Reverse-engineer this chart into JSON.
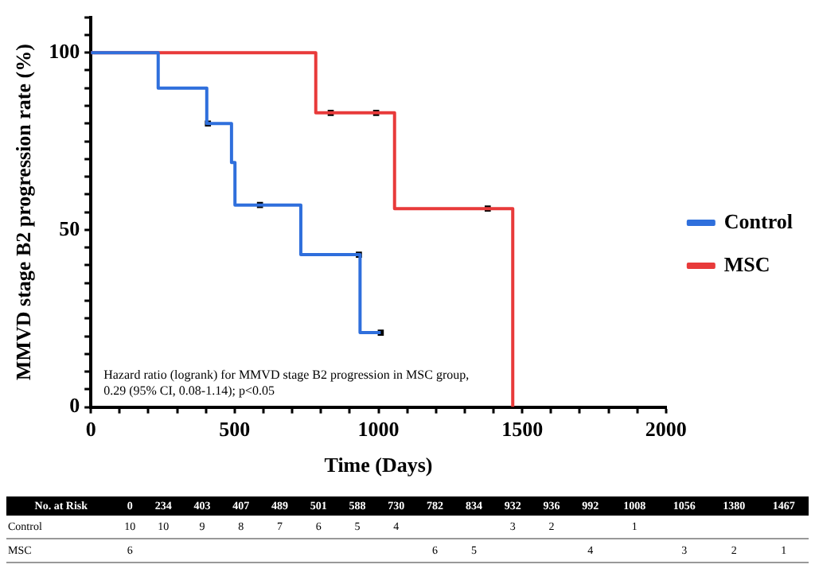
{
  "chart_data": [
    {
      "type": "step",
      "xlabel": "Time (Days)",
      "ylabel": "MMVD stage B2 progression rate (%)",
      "annotations": [
        "Hazard ratio (logrank) for MMVD stage B2 progression in MSC group, 0.29 (95% CI, 0.08-1.14); p<0.05"
      ],
      "series": [
        {
          "name": "Control",
          "color": "#2f6fdc",
          "x": [
            0,
            234,
            403,
            489,
            501,
            730,
            936,
            1008
          ],
          "values": [
            100,
            90,
            80,
            69,
            57,
            43,
            21,
            21
          ]
        },
        {
          "name": "MSC",
          "color": "#e83a3a",
          "x": [
            0,
            782,
            1056,
            1467
          ],
          "values": [
            100,
            83,
            56,
            0
          ]
        },
        {
          "type": "scatter",
          "color": "#000000",
          "marker": "square",
          "x": [
            407,
            588,
            932,
            1008
          ],
          "values": [
            80,
            57,
            43,
            21
          ]
        },
        {
          "type": "scatter",
          "color": "#000000",
          "marker": "square",
          "x": [
            834,
            992,
            1380
          ],
          "values": [
            83,
            83,
            56
          ]
        }
      ],
      "xlim": [
        0,
        2000
      ],
      "xticks": [
        0,
        {
          "value": 100,
          "label": null
        },
        {
          "value": 200,
          "label": null
        },
        {
          "value": 300,
          "label": null
        },
        {
          "value": 400,
          "label": null
        },
        500,
        {
          "value": 600,
          "label": null
        },
        {
          "value": 700,
          "label": null
        },
        {
          "value": 800,
          "label": null
        },
        {
          "value": 900,
          "label": null
        },
        1000,
        {
          "value": 1100,
          "label": null
        },
        {
          "value": 1200,
          "label": null
        },
        {
          "value": 1300,
          "label": null
        },
        {
          "value": 1400,
          "label": null
        },
        1500,
        {
          "value": 1600,
          "label": null
        },
        {
          "value": 1700,
          "label": null
        },
        {
          "value": 1800,
          "label": null
        },
        {
          "value": 1900,
          "label": null
        },
        2000
      ],
      "ylim": [
        0,
        110
      ],
      "yticks": [
        0,
        {
          "value": 5,
          "label": null
        },
        {
          "value": 10,
          "label": null
        },
        {
          "value": 15,
          "label": null
        },
        {
          "value": 20,
          "label": null
        },
        {
          "value": 25,
          "label": null
        },
        {
          "value": 30,
          "label": null
        },
        {
          "value": 35,
          "label": null
        },
        {
          "value": 40,
          "label": null
        },
        {
          "value": 45,
          "label": null
        },
        50,
        {
          "value": 55,
          "label": null
        },
        {
          "value": 60,
          "label": null
        },
        {
          "value": 65,
          "label": null
        },
        {
          "value": 70,
          "label": null
        },
        {
          "value": 75,
          "label": null
        },
        {
          "value": 80,
          "label": null
        },
        {
          "value": 85,
          "label": null
        },
        {
          "value": 90,
          "label": null
        },
        {
          "value": 95,
          "label": null
        },
        100,
        {
          "value": 105,
          "label": null
        },
        {
          "value": 110,
          "label": null
        }
      ],
      "grid": false,
      "legend": "right"
    },
    {
      "type": "other",
      "title": "No. at Risk",
      "categories": [
        "0",
        "234",
        "403",
        "407",
        "489",
        "501",
        "588",
        "730",
        "782",
        "834",
        "932",
        "936",
        "992",
        "1008",
        "1056",
        "1380",
        "1467"
      ],
      "series": [
        {
          "name": "Control",
          "values": [
            10,
            10,
            9,
            8,
            7,
            6,
            5,
            4,
            null,
            null,
            3,
            2,
            null,
            1,
            null,
            null,
            null
          ]
        },
        {
          "name": "MSC",
          "values": [
            6,
            null,
            null,
            null,
            null,
            null,
            null,
            null,
            6,
            5,
            null,
            null,
            4,
            null,
            3,
            2,
            1
          ]
        }
      ],
      "data_labels": true
    }
  ]
}
